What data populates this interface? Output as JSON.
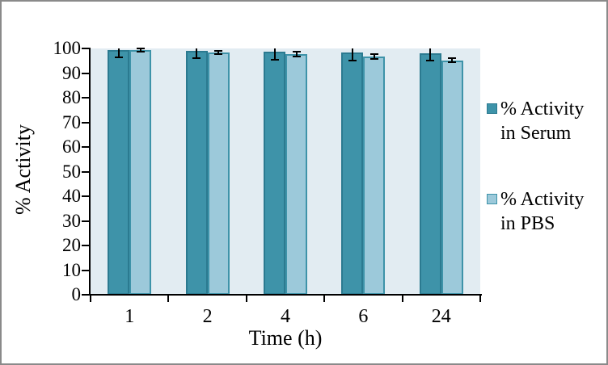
{
  "chart_data": {
    "type": "bar",
    "title": "",
    "xlabel": "Time (h)",
    "ylabel": "% Activity",
    "categories": [
      "1",
      "2",
      "4",
      "6",
      "24"
    ],
    "series": [
      {
        "name": "% Activity in Serum",
        "values": [
          99.3,
          99.1,
          98.8,
          98.3,
          98.0
        ],
        "err_minus": [
          2.9,
          3.1,
          3.3,
          3.2,
          3.0
        ],
        "err_plus": [
          2.9,
          3.1,
          3.3,
          3.2,
          3.0
        ],
        "fill": "#3E93A9",
        "border": "#2B7A90"
      },
      {
        "name": "% Activity in PBS",
        "values": [
          99.3,
          98.3,
          97.7,
          96.8,
          95.2
        ],
        "err_minus": [
          0.7,
          0.7,
          1.1,
          0.9,
          0.9
        ],
        "err_plus": [
          0.7,
          0.7,
          1.1,
          0.9,
          0.9
        ],
        "fill": "#9CC9DA",
        "border": "#3E93A9"
      }
    ],
    "ylim": [
      0,
      100
    ],
    "ytick_step": 10,
    "grid": false,
    "legend_position": "right",
    "plot_bg_color": "#E2ECF2",
    "axis_color": "#000000",
    "frame_border_color": "#8A8A8A"
  }
}
